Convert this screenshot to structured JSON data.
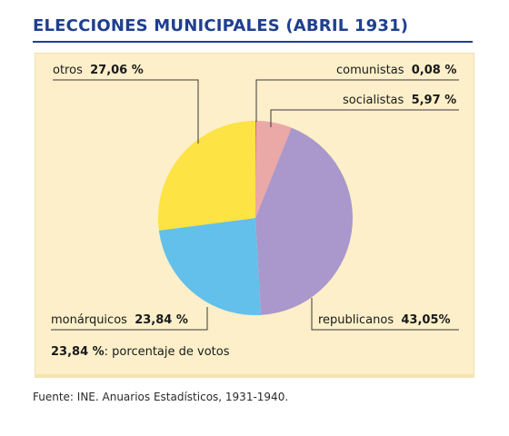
{
  "title": "ELECCIONES MUNICIPALES (ABRIL 1931)",
  "source": "Fuente: INE. Anuarios Estadísticos, 1931-1940.",
  "legend_note": {
    "value": "23,84 %",
    "text": ": porcentaje de votos"
  },
  "colors": {
    "comunistas": "#e0301e",
    "socialistas": "#eaa8a6",
    "republicanos": "#aa97cc",
    "monarquicos": "#63c0ea",
    "otros": "#fde343",
    "title": "#1f3f8f",
    "panel": "#fcefc9"
  },
  "chart_data": {
    "type": "pie",
    "title": "ELECCIONES MUNICIPALES (ABRIL 1931)",
    "slices": [
      {
        "name": "comunistas",
        "label": "comunistas",
        "value": 0.08,
        "display": "0,08 %"
      },
      {
        "name": "socialistas",
        "label": "socialistas",
        "value": 5.97,
        "display": "5,97 %"
      },
      {
        "name": "republicanos",
        "label": "republicanos",
        "value": 43.05,
        "display": "43,05%"
      },
      {
        "name": "monarquicos",
        "label": "monárquicos",
        "value": 23.84,
        "display": "23,84 %"
      },
      {
        "name": "otros",
        "label": "otros",
        "value": 27.06,
        "display": "27,06 %"
      }
    ]
  }
}
